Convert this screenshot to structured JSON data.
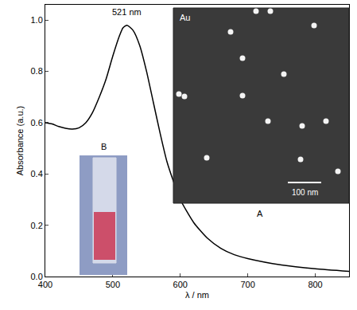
{
  "chart_data": {
    "type": "line",
    "xlabel": "λ / nm",
    "ylabel": "Absorbance (a.u.)",
    "x": [
      400,
      410,
      420,
      430,
      440,
      450,
      460,
      470,
      480,
      490,
      500,
      510,
      515,
      521,
      530,
      540,
      550,
      560,
      570,
      580,
      590,
      600,
      620,
      640,
      660,
      680,
      700,
      750,
      800,
      850
    ],
    "values": [
      0.6,
      0.595,
      0.585,
      0.578,
      0.575,
      0.58,
      0.6,
      0.64,
      0.7,
      0.77,
      0.86,
      0.94,
      0.97,
      0.98,
      0.96,
      0.9,
      0.8,
      0.68,
      0.56,
      0.45,
      0.37,
      0.3,
      0.21,
      0.15,
      0.11,
      0.085,
      0.07,
      0.045,
      0.03,
      0.02
    ],
    "color": "#000000",
    "xlim": [
      400,
      850
    ],
    "ylim": [
      0,
      1.06
    ],
    "xticks": [
      400,
      500,
      600,
      700,
      800
    ],
    "yticks": [
      {
        "value": 0,
        "label": "0.0"
      },
      0.2,
      0.4,
      0.6,
      0.8,
      {
        "value": 1,
        "label": "1.0"
      }
    ],
    "grid": false,
    "annotations": {
      "peak": "521 nm",
      "inset_a_text": "Au",
      "scale_bar": "100 nm",
      "inset_a_label": "A",
      "inset_b_label": "B"
    }
  }
}
